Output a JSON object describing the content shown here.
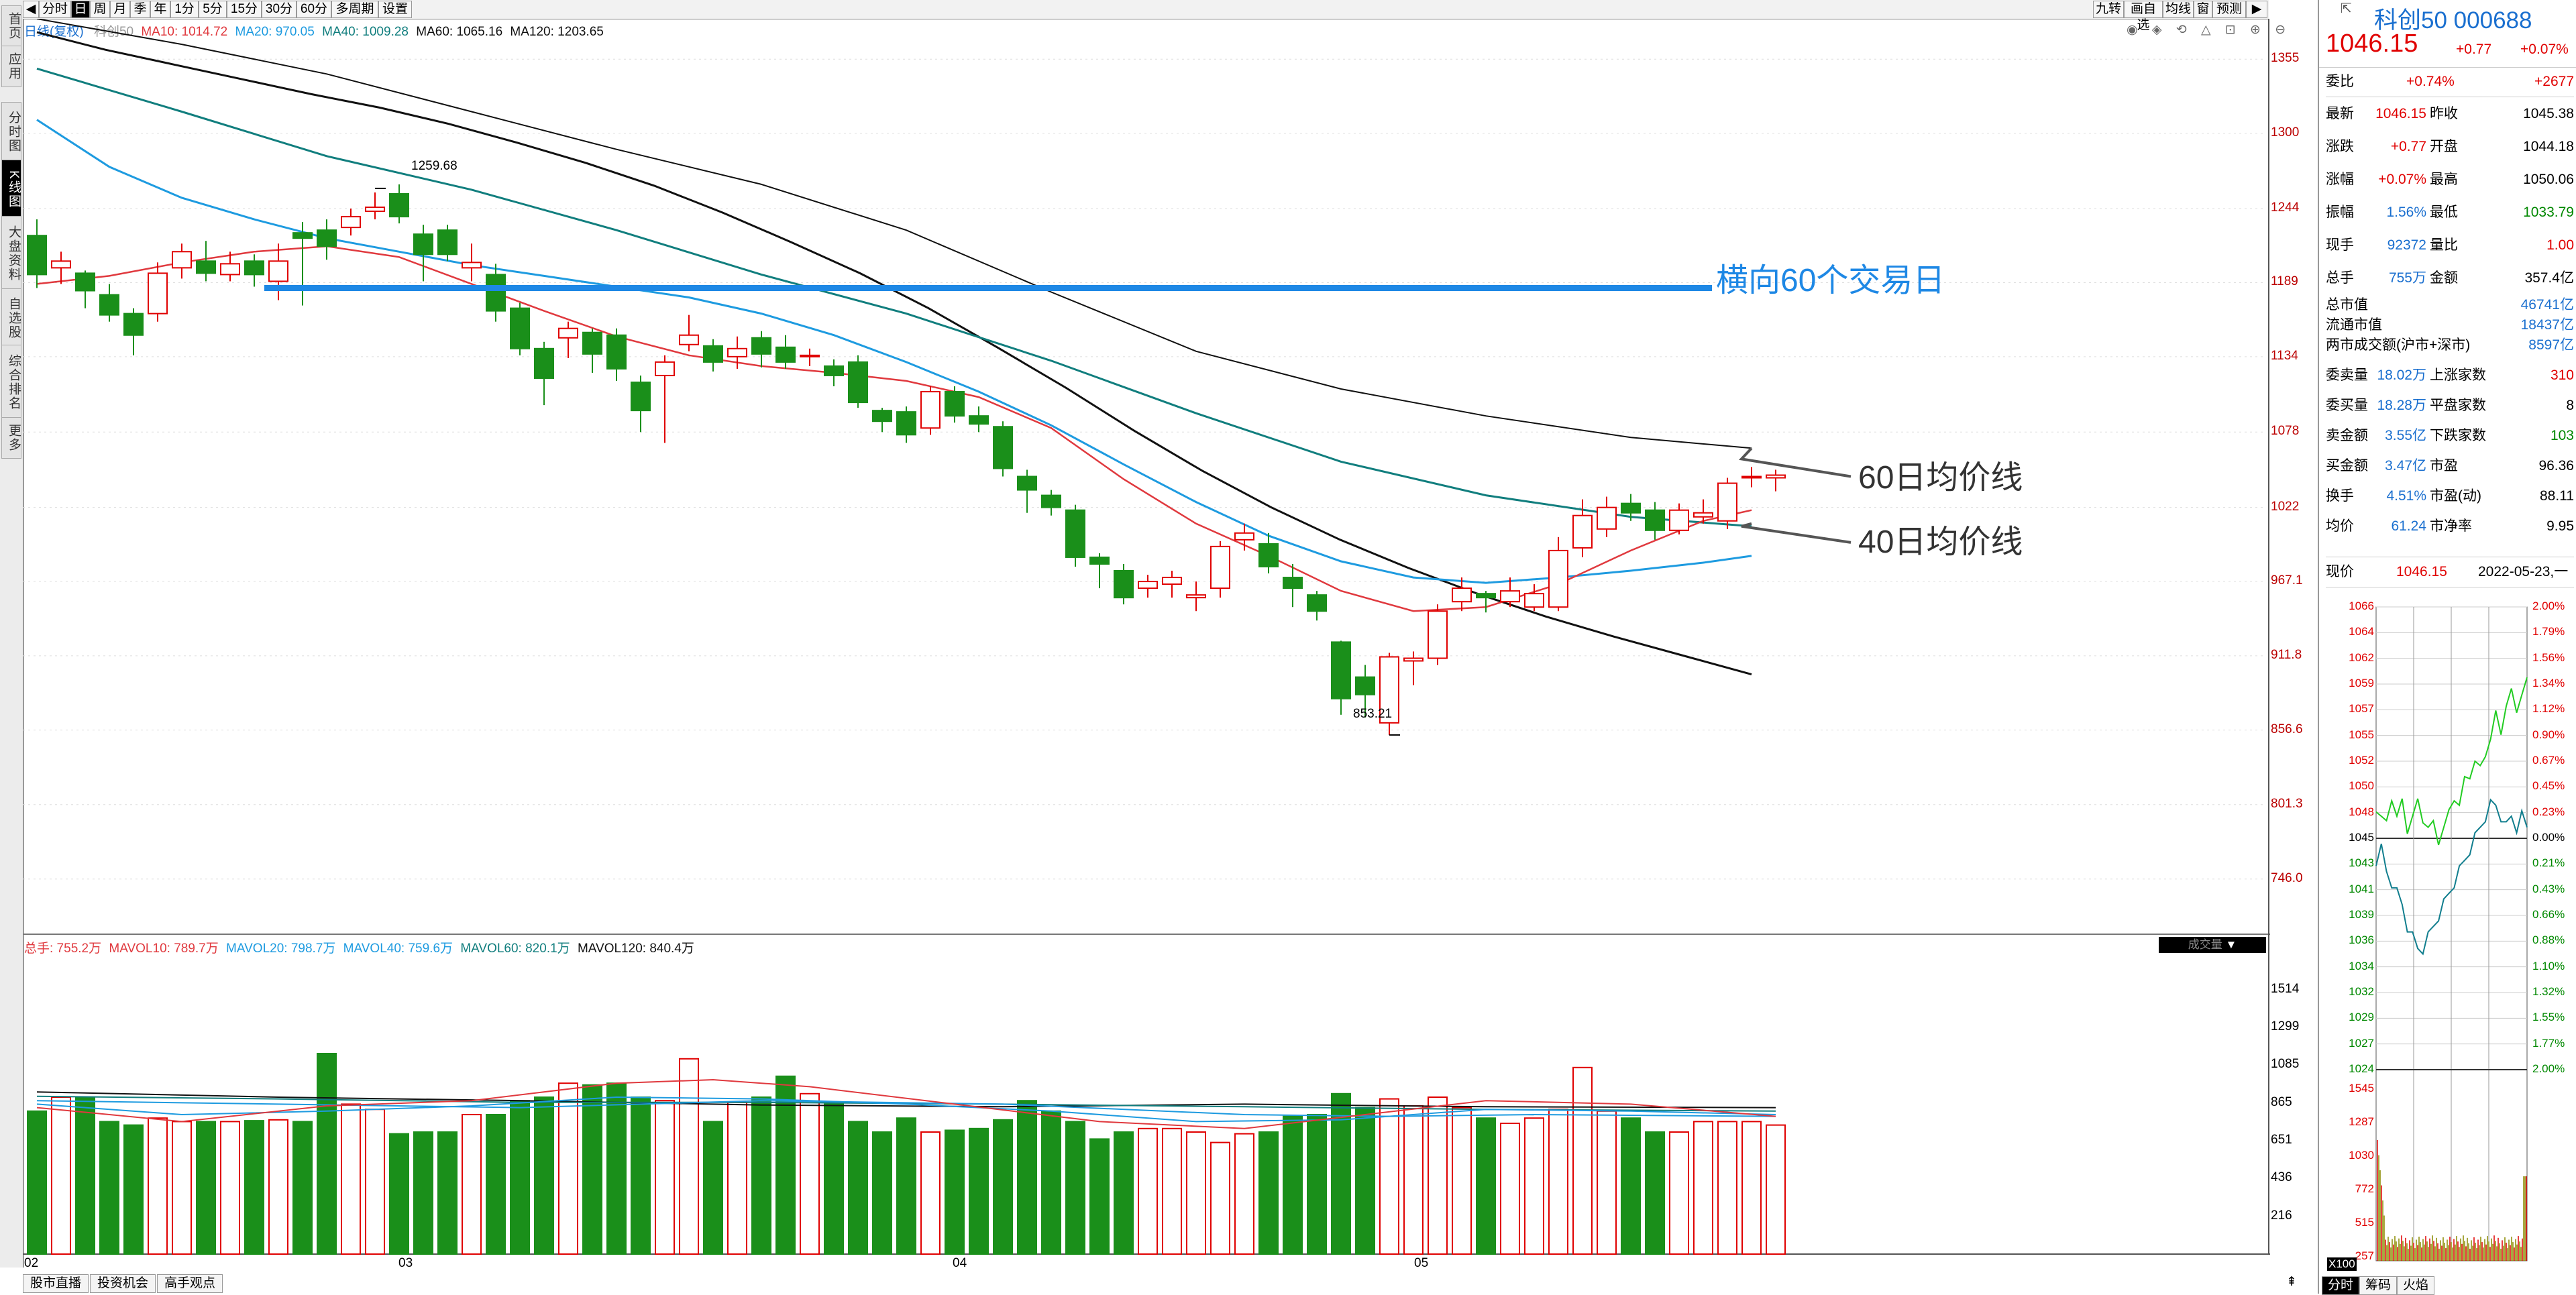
{
  "left_tabs": [
    "首页",
    "应用",
    "分时图",
    "K线图",
    "大盘资料",
    "自选股",
    "综合排名",
    "更多"
  ],
  "toolbar": {
    "periods": [
      "分时",
      "日",
      "周",
      "月",
      "季",
      "年",
      "1分",
      "5分",
      "15分",
      "30分",
      "60分",
      "多周期",
      "设置"
    ],
    "selected": "日",
    "right_buttons": [
      "九转",
      "画自选",
      "均线",
      "窗",
      "预测"
    ]
  },
  "legend": {
    "main_label": "日线(复权)",
    "index_label": "科创50",
    "ma10": "MA10: 1014.72",
    "ma20": "MA20: 970.05",
    "ma40": "MA40: 1009.28",
    "ma60": "MA60: 1065.16",
    "ma120": "MA120: 1203.65"
  },
  "price_axis": [
    "1355",
    "1300",
    "1244",
    "1189",
    "1134",
    "1078",
    "1022",
    "967.1",
    "911.8",
    "856.6",
    "801.3",
    "746.0"
  ],
  "volume_axis": [
    "1514",
    "1299",
    "1085",
    "865",
    "651",
    "436",
    "216"
  ],
  "date_axis": [
    "02",
    "03",
    "04",
    "05"
  ],
  "annotations": {
    "high_label": "1259.68",
    "low_label": "853.21",
    "hline_label": "横向60个交易日",
    "ma60_label": "60日均价线",
    "ma40_label": "40日均价线"
  },
  "volume_legend": {
    "total": "总手: 755.2万",
    "mavol10": "MAVOL10: 789.7万",
    "mavol20": "MAVOL20: 798.7万",
    "mavol40": "MAVOL40: 759.6万",
    "mavol60": "MAVOL60: 820.1万",
    "mavol120": "MAVOL120: 840.4万",
    "dropdown": "成交量"
  },
  "bottom_tabs": [
    "股市直播",
    "投资机会",
    "高手观点"
  ],
  "colors": {
    "up": "#e00000",
    "down": "#1a8f1a",
    "ma10": "#e0393e",
    "ma20": "#1e9be0",
    "ma40": "#117e7e",
    "ma60": "#111111",
    "hline": "#1e88e5"
  },
  "quote": {
    "name": "科创50",
    "code": "000688",
    "price": "1046.15",
    "change": "+0.77",
    "pct": "+0.07%",
    "weibi_label": "委比",
    "weibi": "+0.74%",
    "weicha": "+2677",
    "rows": [
      {
        "l1": "最新",
        "v1": "1046.15",
        "l2": "昨收",
        "v2": "1045.38"
      },
      {
        "l1": "涨跌",
        "v1": "+0.77",
        "l2": "开盘",
        "v2": "1044.18"
      },
      {
        "l1": "涨幅",
        "v1": "+0.07%",
        "l2": "最高",
        "v2": "1050.06"
      },
      {
        "l1": "振幅",
        "v1": "1.56%",
        "l2": "最低",
        "v2": "1033.79"
      },
      {
        "l1": "现手",
        "v1": "92372",
        "l2": "量比",
        "v2": "1.00"
      },
      {
        "l1": "总手",
        "v1": "755万",
        "l2": "金额",
        "v2": "357.4亿"
      }
    ],
    "mkt": [
      {
        "l": "总市值",
        "v": "46741亿"
      },
      {
        "l": "流通市值",
        "v": "18437亿"
      },
      {
        "l": "两市成交额(沪市+深市)",
        "v": "8597亿"
      }
    ],
    "rows2": [
      {
        "l1": "委卖量",
        "v1": "18.02万",
        "l2": "上涨家数",
        "v2": "310"
      },
      {
        "l1": "委买量",
        "v1": "18.28万",
        "l2": "平盘家数",
        "v2": "8"
      },
      {
        "l1": "卖金额",
        "v1": "3.55亿",
        "l2": "下跌家数",
        "v2": "103"
      },
      {
        "l1": "买金额",
        "v1": "3.47亿",
        "l2": "市盈",
        "v2": "96.36"
      },
      {
        "l1": "换手",
        "v1": "4.51%",
        "l2": "市盈(动)",
        "v2": "88.11"
      },
      {
        "l1": "均价",
        "v1": "61.24",
        "l2": "市净率",
        "v2": "9.95"
      }
    ],
    "now_label": "现价",
    "now_price": "1046.15",
    "date": "2022-05-23,一"
  },
  "mini_chart": {
    "left_axis": [
      "1066",
      "1064",
      "1062",
      "1059",
      "1057",
      "1055",
      "1052",
      "1050",
      "1048",
      "1045",
      "1043",
      "1041",
      "1039",
      "1036",
      "1034",
      "1032",
      "1029",
      "1027",
      "1024"
    ],
    "right_axis": [
      "2.00%",
      "1.79%",
      "1.56%",
      "1.34%",
      "1.12%",
      "0.90%",
      "0.67%",
      "0.45%",
      "0.23%",
      "0.00%",
      "0.21%",
      "0.43%",
      "0.66%",
      "0.88%",
      "1.10%",
      "1.32%",
      "1.55%",
      "1.77%",
      "2.00%"
    ],
    "vol_axis": [
      "1545",
      "1287",
      "1030",
      "772",
      "515",
      "257"
    ],
    "vol_unit": "X100"
  },
  "rp_bottom_tabs": [
    "分时",
    "筹码",
    "火焰"
  ]
}
